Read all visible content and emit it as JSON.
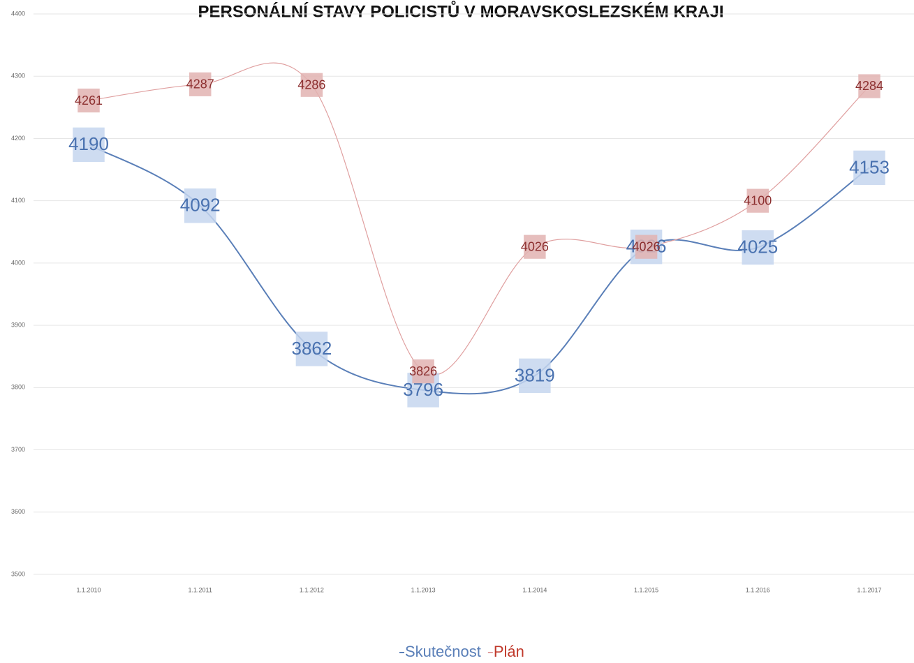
{
  "chart_data": {
    "type": "line",
    "title": "PERSONÁLNÍ STAVY POLICISTŮ V MORAVSKOSLEZSKÉM KRAJI",
    "categories": [
      "1.1.2010",
      "1.1.2011",
      "1.1.2012",
      "1.1.2013",
      "1.1.2014",
      "1.1.2015",
      "1.1.2016",
      "1.1.2017"
    ],
    "series": [
      {
        "name": "Skutečnost",
        "color": "#5a7fb8",
        "label_fill": "#c5d6ee",
        "values": [
          4190,
          4092,
          3862,
          3796,
          3819,
          4026,
          4025,
          4153
        ]
      },
      {
        "name": "Plán",
        "color": "#e0a0a0",
        "label_fill": "#e2b3b1",
        "values": [
          4261,
          4287,
          4286,
          3826,
          4026,
          4026,
          4100,
          4284
        ]
      }
    ],
    "ylim": [
      3500,
      4400
    ],
    "yticks": [
      3500,
      3600,
      3700,
      3800,
      3900,
      4000,
      4100,
      4200,
      4300,
      4400
    ],
    "grid": true,
    "smooth": true,
    "legend": "bottom"
  }
}
